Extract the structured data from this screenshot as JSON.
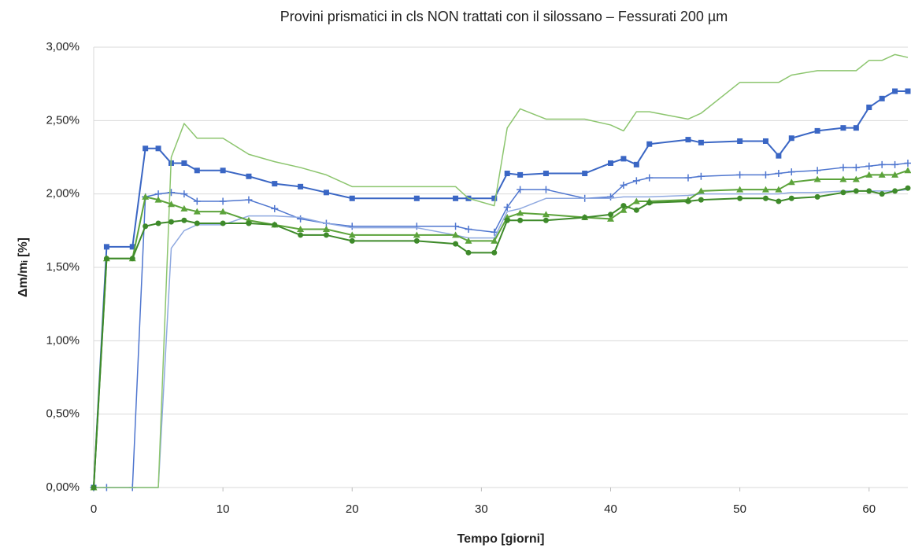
{
  "chart_data": {
    "type": "line",
    "title": "Provini prismatici in cls NON trattati con il silossano – Fessurati 200 µm",
    "x_label": "Tempo [giorni]",
    "y_label": "Δm/mᵢ [%]",
    "x": [
      0,
      1,
      3,
      4,
      5,
      6,
      7,
      8,
      10,
      12,
      14,
      16,
      18,
      20,
      25,
      28,
      29,
      31,
      32,
      33,
      35,
      38,
      40,
      41,
      42,
      43,
      46,
      47,
      50,
      52,
      53,
      54,
      56,
      58,
      59,
      60,
      61,
      62,
      63
    ],
    "series": [
      {
        "color": "#3a66c4",
        "marker": "square",
        "line_width": 2,
        "values": [
          0,
          1.64,
          1.64,
          2.31,
          2.31,
          2.21,
          2.21,
          2.16,
          2.16,
          2.12,
          2.07,
          2.05,
          2.01,
          1.97,
          1.97,
          1.97,
          1.97,
          1.97,
          2.14,
          2.13,
          2.14,
          2.14,
          2.21,
          2.24,
          2.2,
          2.34,
          2.37,
          2.35,
          2.36,
          2.36,
          2.26,
          2.38,
          2.43,
          2.45,
          2.45,
          2.59,
          2.65,
          2.7,
          2.7
        ]
      },
      {
        "color": "#4f76cf",
        "marker": "plus",
        "line_width": 1.5,
        "values": [
          0,
          0,
          0,
          1.98,
          2.0,
          2.01,
          2.0,
          1.95,
          1.95,
          1.96,
          1.9,
          1.83,
          1.8,
          1.78,
          1.78,
          1.78,
          1.76,
          1.74,
          1.91,
          2.03,
          2.03,
          1.97,
          1.98,
          2.06,
          2.09,
          2.11,
          2.11,
          2.12,
          2.13,
          2.13,
          2.14,
          2.15,
          2.16,
          2.18,
          2.18,
          2.19,
          2.2,
          2.2,
          2.21
        ]
      },
      {
        "color": "#8fa9e0",
        "marker": "none",
        "line_width": 1.5,
        "values": [
          0,
          0,
          0,
          0,
          0,
          1.63,
          1.75,
          1.79,
          1.79,
          1.85,
          1.85,
          1.84,
          1.8,
          1.77,
          1.77,
          1.72,
          1.7,
          1.7,
          1.88,
          1.9,
          1.97,
          1.97,
          1.97,
          1.98,
          1.98,
          1.98,
          1.99,
          2.0,
          2.0,
          2.0,
          2.0,
          2.01,
          2.01,
          2.02,
          2.02,
          2.02,
          2.02,
          2.02,
          2.03
        ]
      },
      {
        "color": "#8cc56e",
        "marker": "none",
        "line_width": 1.5,
        "values": [
          0,
          0,
          0,
          0,
          0,
          2.25,
          2.48,
          2.38,
          2.38,
          2.27,
          2.22,
          2.18,
          2.13,
          2.05,
          2.05,
          2.05,
          1.97,
          1.92,
          2.45,
          2.58,
          2.51,
          2.51,
          2.47,
          2.43,
          2.56,
          2.56,
          2.51,
          2.55,
          2.76,
          2.76,
          2.76,
          2.81,
          2.84,
          2.84,
          2.84,
          2.91,
          2.91,
          2.95,
          2.93
        ]
      },
      {
        "color": "#5ca33b",
        "marker": "triangle",
        "line_width": 2,
        "values": [
          0,
          1.56,
          1.56,
          1.98,
          1.96,
          1.93,
          1.9,
          1.88,
          1.88,
          1.82,
          1.79,
          1.76,
          1.76,
          1.72,
          1.72,
          1.72,
          1.68,
          1.68,
          1.84,
          1.87,
          1.86,
          1.84,
          1.83,
          1.89,
          1.95,
          1.95,
          1.96,
          2.02,
          2.03,
          2.03,
          2.03,
          2.08,
          2.1,
          2.1,
          2.1,
          2.13,
          2.13,
          2.13,
          2.16
        ]
      },
      {
        "color": "#3e8a2a",
        "marker": "circle",
        "line_width": 2,
        "values": [
          0,
          1.56,
          1.56,
          1.78,
          1.8,
          1.81,
          1.82,
          1.8,
          1.8,
          1.8,
          1.79,
          1.72,
          1.72,
          1.68,
          1.68,
          1.66,
          1.6,
          1.6,
          1.82,
          1.82,
          1.82,
          1.84,
          1.86,
          1.92,
          1.89,
          1.94,
          1.95,
          1.96,
          1.97,
          1.97,
          1.95,
          1.97,
          1.98,
          2.01,
          2.02,
          2.02,
          2.0,
          2.02,
          2.04
        ]
      }
    ],
    "xlim": [
      0,
      63
    ],
    "xticks": [
      0,
      10,
      20,
      30,
      40,
      50,
      60
    ],
    "ylim": [
      0,
      3
    ],
    "yticks": [
      {
        "value": 0,
        "label": "0,00%"
      },
      {
        "value": 0.5,
        "label": "0,50%"
      },
      {
        "value": 1,
        "label": "1,00%"
      },
      {
        "value": 1.5,
        "label": "1,50%"
      },
      {
        "value": 2,
        "label": "2,00%"
      },
      {
        "value": 2.5,
        "label": "2,50%"
      },
      {
        "value": 3,
        "label": "3,00%"
      }
    ],
    "grid": true
  }
}
